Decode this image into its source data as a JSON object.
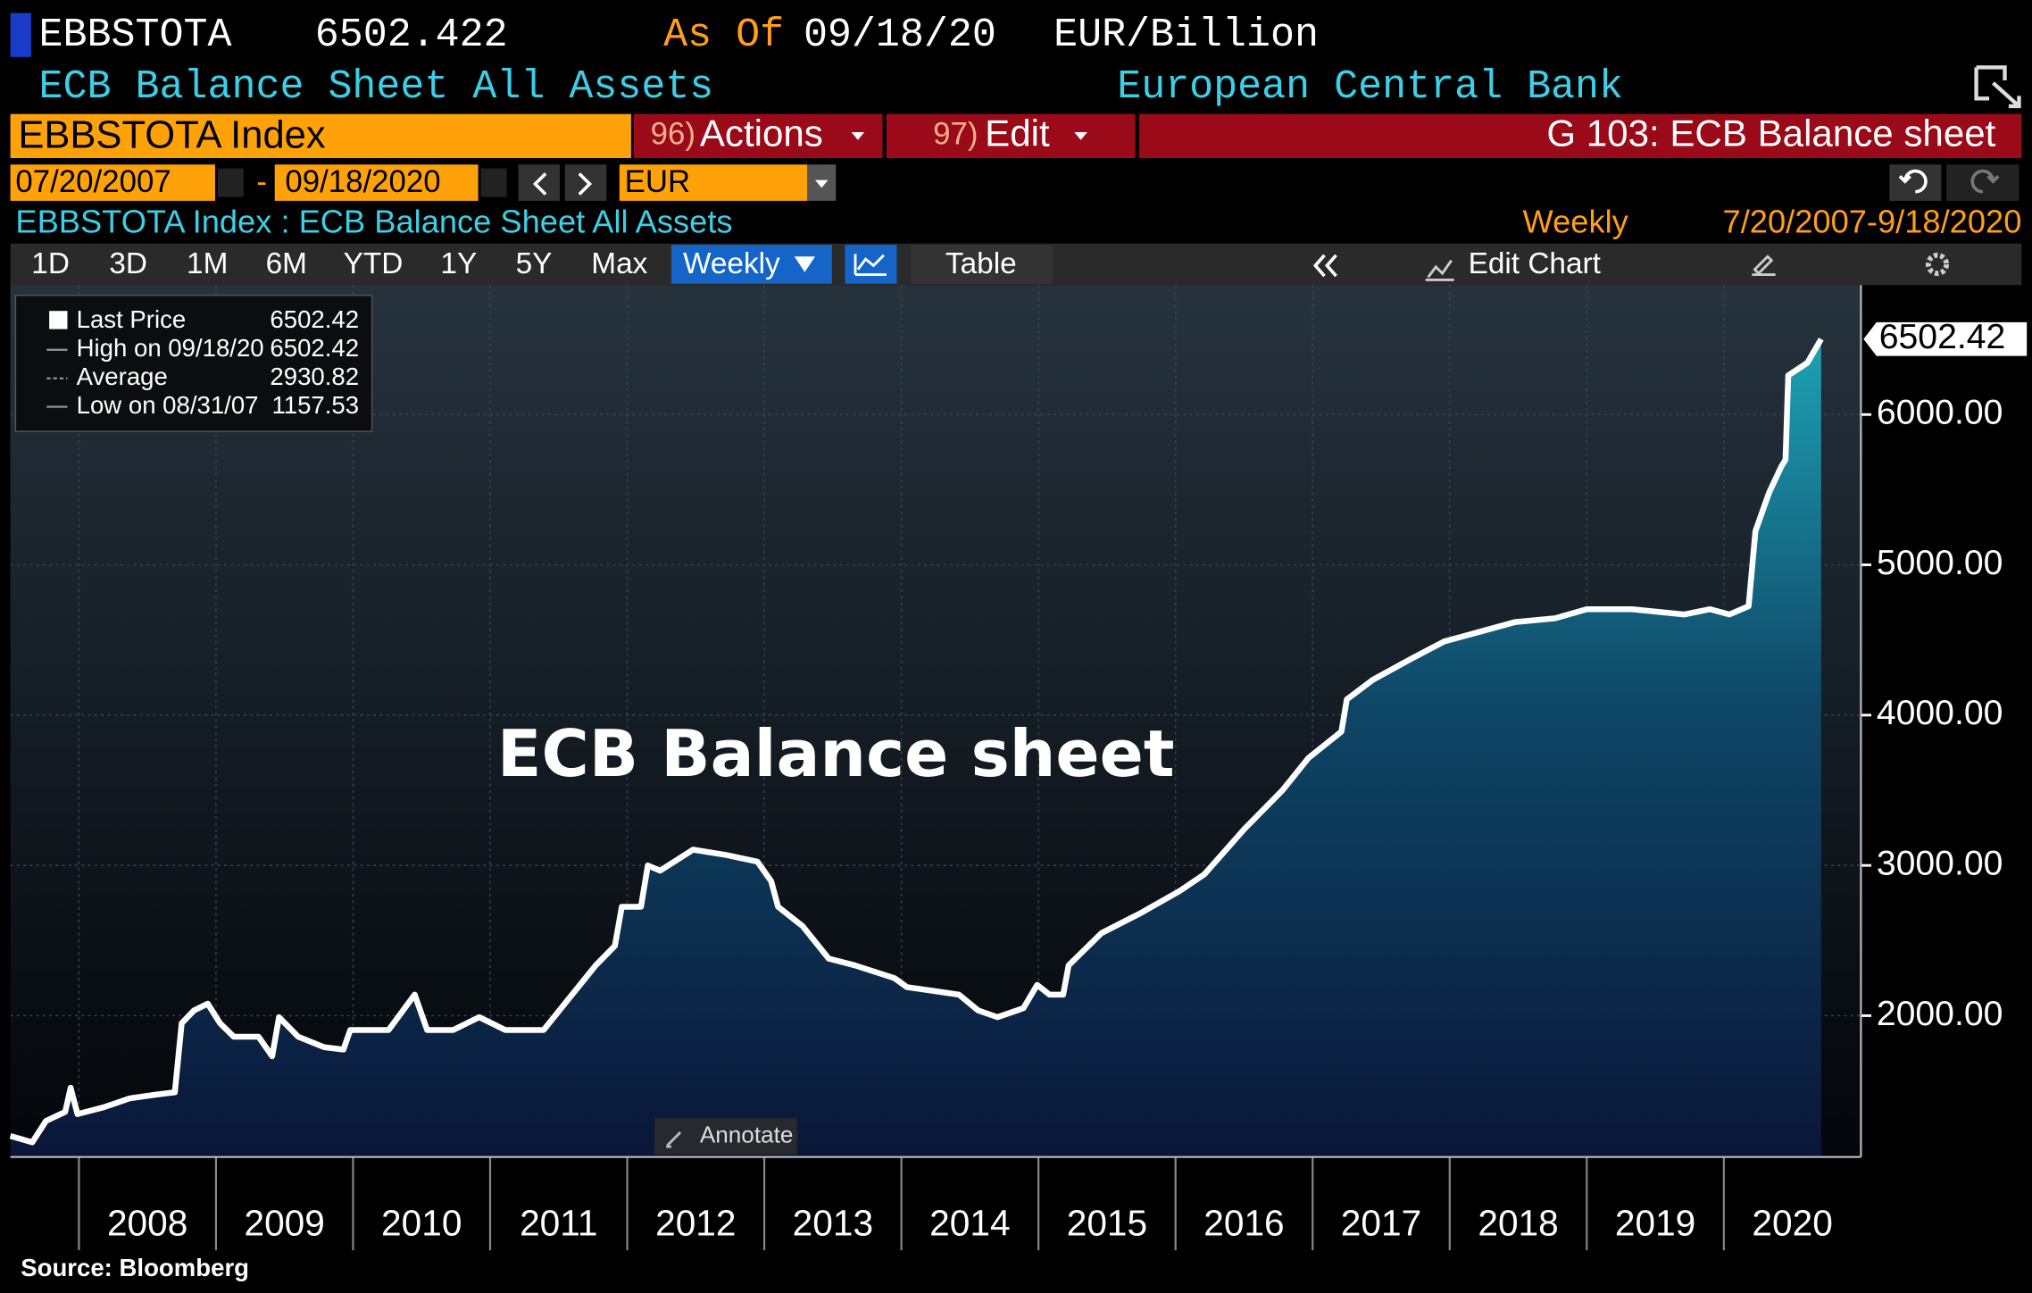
{
  "header": {
    "ticker": "EBBSTOTA",
    "price": 6502.422,
    "as_of_label": "As Of",
    "as_of_date": "09/18/20",
    "units": "EUR/Billion",
    "name": "ECB Balance Sheet All Assets",
    "source_name": "European Central Bank"
  },
  "command_bar": {
    "security": "EBBSTOTA Index",
    "actions_num": "96)",
    "actions": "Actions",
    "edit_num": "97)",
    "edit": "Edit",
    "function": "G 103: ECB Balance sheet"
  },
  "date_bar": {
    "start": "07/20/2007",
    "separator": "-",
    "end": "09/18/2020",
    "currency": "EUR"
  },
  "chart_header": {
    "security_title": "EBBSTOTA Index : ECB Balance Sheet All Assets",
    "frequency": "Weekly",
    "range": "7/20/2007-9/18/2020"
  },
  "toolbar": {
    "periods": [
      "1D",
      "3D",
      "1M",
      "6M",
      "YTD",
      "1Y",
      "5Y",
      "Max"
    ],
    "frequency": "Weekly",
    "table": "Table",
    "edit_chart": "Edit Chart"
  },
  "chart_data": {
    "type": "area",
    "annotation": "ECB Balance sheet",
    "x": [
      2007.5,
      2007.66,
      2007.76,
      2007.9,
      2007.94,
      2007.99,
      2008.18,
      2008.37,
      2008.56,
      2008.7,
      2008.75,
      2008.84,
      2008.94,
      2009.03,
      2009.13,
      2009.31,
      2009.41,
      2009.46,
      2009.6,
      2009.79,
      2009.93,
      2009.98,
      2010.26,
      2010.45,
      2010.54,
      2010.73,
      2010.92,
      2011.11,
      2011.39,
      2011.58,
      2011.77,
      2011.91,
      2011.96,
      2012.1,
      2012.15,
      2012.24,
      2012.48,
      2012.72,
      2012.95,
      2013.05,
      2013.1,
      2013.28,
      2013.47,
      2013.66,
      2013.95,
      2014.04,
      2014.23,
      2014.42,
      2014.56,
      2014.7,
      2014.89,
      2014.99,
      2015.08,
      2015.18,
      2015.22,
      2015.46,
      2015.74,
      2016.03,
      2016.21,
      2016.5,
      2016.78,
      2016.97,
      2017.21,
      2017.25,
      2017.44,
      2017.73,
      2017.96,
      2018.2,
      2018.48,
      2018.77,
      2019.0,
      2019.33,
      2019.71,
      2019.9,
      2020.04,
      2020.18,
      2020.23,
      2020.33,
      2020.42,
      2020.45,
      2020.47,
      2020.61,
      2020.71
    ],
    "series": [
      {
        "name": "Last Price",
        "color": "#ffffff",
        "values": [
          1200,
          1157.53,
          1300,
          1360,
          1520,
          1345,
          1390,
          1450,
          1475,
          1490,
          1950,
          2035,
          2080,
          1950,
          1860,
          1860,
          1730,
          1990,
          1860,
          1790,
          1775,
          1905,
          1905,
          2140,
          1905,
          1905,
          1990,
          1905,
          1905,
          2120,
          2335,
          2465,
          2725,
          2725,
          3000,
          2965,
          3105,
          3070,
          3025,
          2895,
          2725,
          2595,
          2380,
          2335,
          2250,
          2190,
          2165,
          2140,
          2035,
          1990,
          2050,
          2205,
          2140,
          2140,
          2335,
          2550,
          2680,
          2830,
          2940,
          3240,
          3500,
          3715,
          3890,
          4105,
          4235,
          4380,
          4490,
          4550,
          4620,
          4645,
          4705,
          4705,
          4670,
          4705,
          4670,
          4725,
          5225,
          5480,
          5655,
          5700,
          6260,
          6345,
          6502.42
        ]
      }
    ],
    "legend": [
      {
        "label": "High on 09/18/20",
        "value": 6502.42
      },
      {
        "label": "Average",
        "value": 2930.82
      },
      {
        "label": "Low on 08/31/07",
        "value": 1157.53
      }
    ],
    "xlim": [
      2007.5,
      2021
    ],
    "xticks": [
      2008,
      2009,
      2010,
      2011,
      2012,
      2013,
      2014,
      2015,
      2016,
      2017,
      2018,
      2019,
      2020
    ],
    "ylim": [
      1060,
      6862
    ],
    "yticks": [
      {
        "value": 2000,
        "label": "2000.00"
      },
      {
        "value": 3000,
        "label": "3000.00"
      },
      {
        "value": 4000,
        "label": "4000.00"
      },
      {
        "value": 5000,
        "label": "5000.00"
      },
      {
        "value": 6000,
        "label": "6000.00"
      }
    ],
    "grid": true
  },
  "annotate_button": "Annotate",
  "footer": {
    "source": "Source: Bloomberg"
  }
}
